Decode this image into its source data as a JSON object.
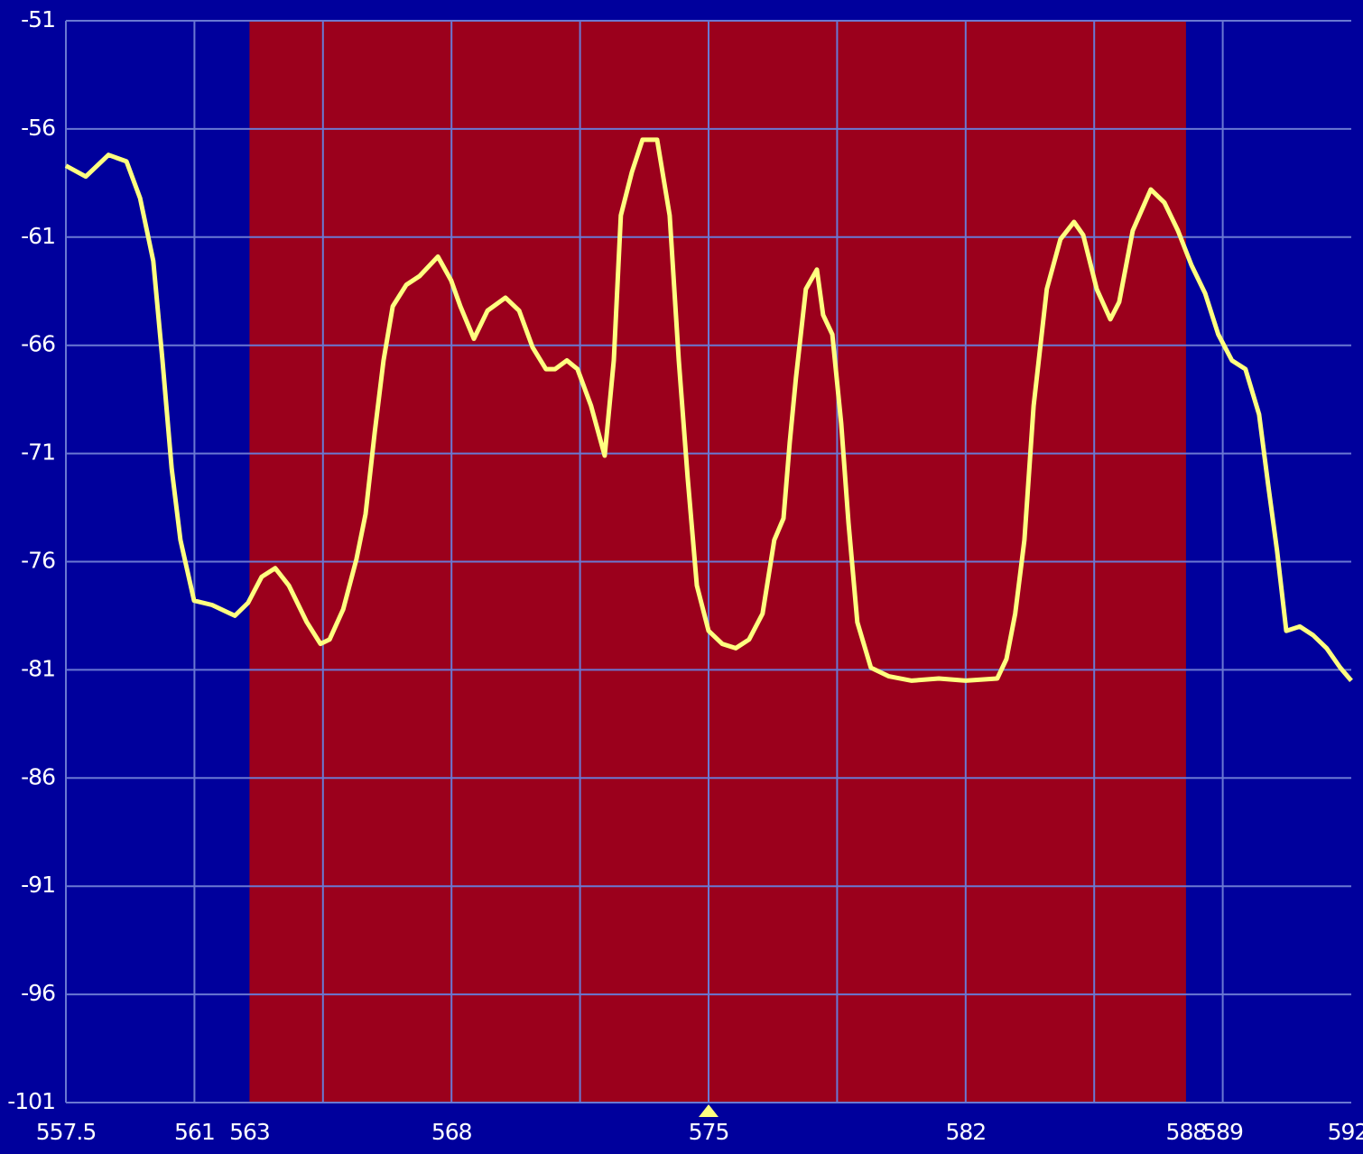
{
  "chart_data": {
    "type": "line",
    "background": "#00009c",
    "grid": true,
    "grid_color": "#6a78d2",
    "xlim": [
      557.5,
      592.5
    ],
    "ylim": [
      -101,
      -51
    ],
    "yticks": [
      -51,
      -56,
      -61,
      -66,
      -71,
      -76,
      -81,
      -86,
      -91,
      -96,
      -101
    ],
    "xticks": [
      557.5,
      561,
      {
        "value": 562.5,
        "label": "563"
      },
      568,
      575,
      582,
      588,
      589,
      {
        "value": 592.4,
        "label": "592"
      }
    ],
    "xgrid": [
      561,
      564.5,
      568,
      571.5,
      575,
      578.5,
      582,
      585.5,
      589
    ],
    "highlight": {
      "from": 562.5,
      "to": 588,
      "color": "#9b001c"
    },
    "marker": 575,
    "marker_color": "#ffff80",
    "series": [
      {
        "color": "#ffff80",
        "x": [
          557.5,
          558.04,
          558.66,
          559.15,
          559.52,
          559.88,
          560.13,
          560.38,
          560.62,
          560.99,
          561.48,
          562.1,
          562.46,
          562.83,
          563.2,
          563.57,
          564.06,
          564.43,
          564.68,
          565.05,
          565.41,
          565.66,
          565.91,
          566.15,
          566.4,
          566.77,
          567.13,
          567.63,
          567.99,
          568.24,
          568.61,
          568.98,
          569.47,
          569.84,
          570.21,
          570.57,
          570.82,
          571.14,
          571.43,
          571.8,
          572.17,
          572.42,
          572.61,
          572.91,
          573.2,
          573.6,
          573.94,
          574.19,
          574.43,
          574.68,
          575.0,
          575.37,
          575.74,
          576.1,
          576.47,
          576.79,
          577.04,
          577.21,
          577.38,
          577.65,
          577.95,
          578.12,
          578.37,
          578.61,
          578.81,
          579.05,
          579.42,
          579.91,
          580.53,
          581.27,
          582.0,
          582.86,
          583.11,
          583.35,
          583.6,
          583.85,
          584.21,
          584.58,
          584.95,
          585.2,
          585.57,
          585.94,
          586.18,
          586.55,
          587.04,
          587.41,
          587.78,
          588.15,
          588.52,
          588.88,
          589.25,
          589.62,
          589.99,
          590.24,
          590.48,
          590.73,
          591.1,
          591.46,
          591.83,
          592.2,
          592.5
        ],
        "values": [
          -57.7,
          -58.2,
          -57.2,
          -57.5,
          -59.2,
          -62.1,
          -66.7,
          -71.7,
          -75.0,
          -77.8,
          -78.0,
          -78.5,
          -77.9,
          -76.7,
          -76.3,
          -77.1,
          -78.8,
          -79.8,
          -79.6,
          -78.2,
          -75.9,
          -73.8,
          -70.0,
          -66.7,
          -64.2,
          -63.2,
          -62.8,
          -61.9,
          -63.0,
          -64.2,
          -65.7,
          -64.4,
          -63.8,
          -64.4,
          -66.1,
          -67.1,
          -67.1,
          -66.7,
          -67.1,
          -68.8,
          -71.1,
          -66.7,
          -60.0,
          -58.0,
          -56.5,
          -56.5,
          -60.0,
          -66.7,
          -72.1,
          -77.1,
          -79.2,
          -79.8,
          -80.0,
          -79.6,
          -78.4,
          -75.0,
          -74.0,
          -70.5,
          -67.5,
          -63.4,
          -62.5,
          -64.6,
          -65.5,
          -69.6,
          -74.2,
          -78.8,
          -80.9,
          -81.3,
          -81.5,
          -81.4,
          -81.5,
          -81.4,
          -80.5,
          -78.4,
          -75.0,
          -68.8,
          -63.4,
          -61.1,
          -60.3,
          -60.9,
          -63.4,
          -64.8,
          -64.0,
          -60.7,
          -58.8,
          -59.4,
          -60.7,
          -62.3,
          -63.6,
          -65.5,
          -66.7,
          -67.1,
          -69.2,
          -72.5,
          -75.5,
          -79.2,
          -79.0,
          -79.4,
          -80.0,
          -80.9,
          -81.5
        ]
      }
    ]
  }
}
